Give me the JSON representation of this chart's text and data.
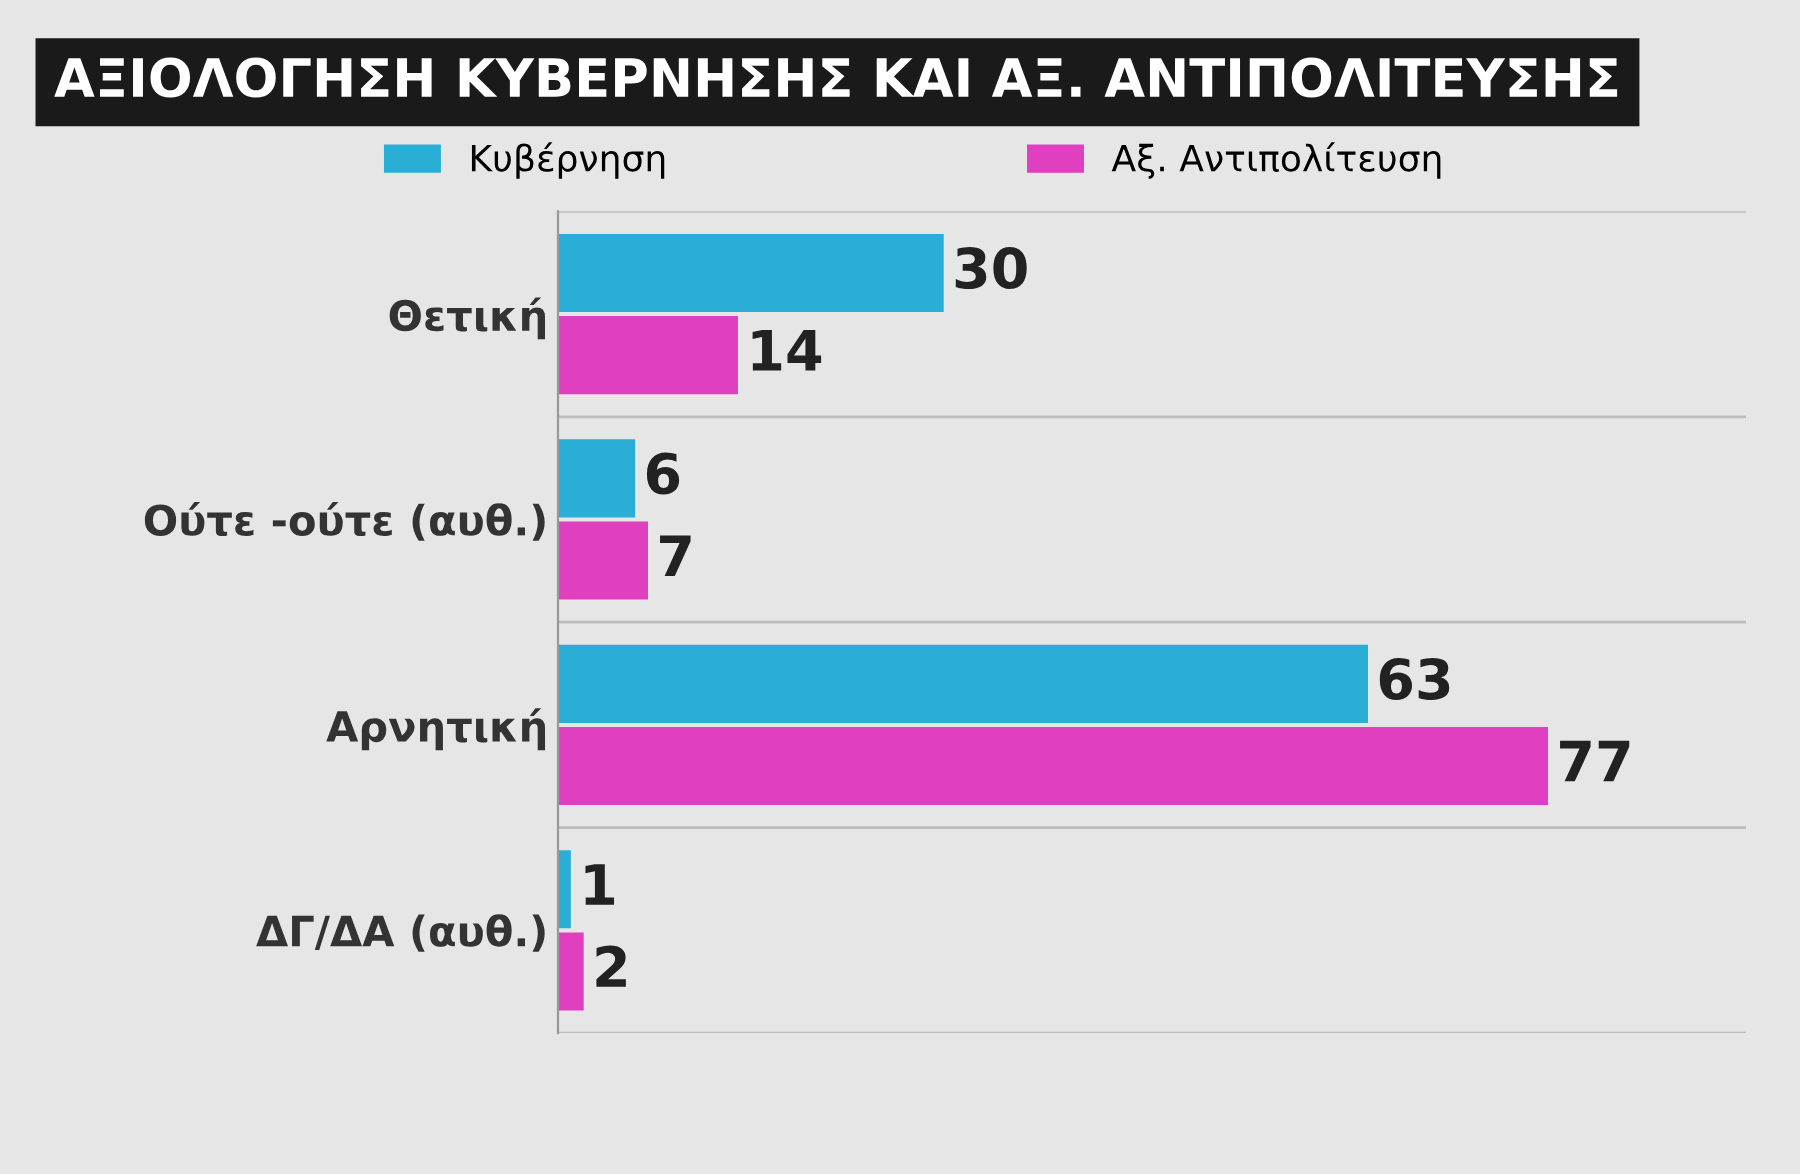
{
  "chart_data": {
    "type": "bar",
    "orientation": "horizontal",
    "title": "ΑΞΙΟΛΟΓΗΣΗ ΚΥΒΕΡΝΗΣΗΣ ΚΑΙ ΑΞ. ΑΝΤΙΠΟΛΙΤΕΥΣΗΣ",
    "categories": [
      "Θετική",
      "Ούτε -ούτε (αυθ.)",
      "Αρνητική",
      "ΔΓ/ΔΑ (αυθ.)"
    ],
    "series": [
      {
        "name": "Κυβέρνηση",
        "color": "#2aaed6",
        "values": [
          30,
          6,
          63,
          1
        ]
      },
      {
        "name": "Αξ. Αντιπολίτευση",
        "color": "#e03fbf",
        "values": [
          14,
          7,
          77,
          2
        ]
      }
    ],
    "data_labels": true,
    "legend": "top",
    "grid": false,
    "tick_labels": "y"
  }
}
